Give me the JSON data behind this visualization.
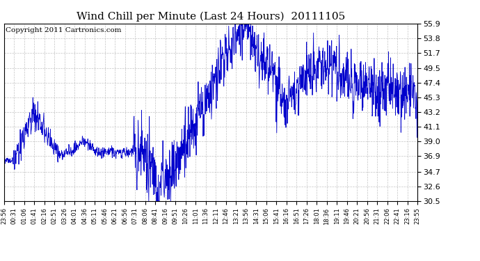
{
  "title": "Wind Chill per Minute (Last 24 Hours)  20111105",
  "copyright": "Copyright 2011 Cartronics.com",
  "ylabel_ticks": [
    30.5,
    32.6,
    34.7,
    36.9,
    39.0,
    41.1,
    43.2,
    45.3,
    47.4,
    49.5,
    51.7,
    53.8,
    55.9
  ],
  "ymin": 30.5,
  "ymax": 55.9,
  "line_color": "#0000cc",
  "background_color": "#ffffff",
  "grid_color": "#aaaaaa",
  "title_fontsize": 11,
  "copyright_fontsize": 7.5,
  "xtick_labels": [
    "23:56",
    "00:31",
    "01:06",
    "01:41",
    "02:16",
    "02:51",
    "03:26",
    "04:01",
    "04:36",
    "05:11",
    "05:46",
    "06:21",
    "06:56",
    "07:31",
    "08:06",
    "08:41",
    "09:16",
    "09:51",
    "10:26",
    "11:01",
    "11:36",
    "12:11",
    "12:46",
    "13:21",
    "13:56",
    "14:31",
    "15:06",
    "15:41",
    "16:16",
    "16:51",
    "17:26",
    "18:01",
    "18:36",
    "19:11",
    "19:46",
    "20:21",
    "20:56",
    "21:31",
    "22:06",
    "22:41",
    "23:16",
    "23:55"
  ]
}
